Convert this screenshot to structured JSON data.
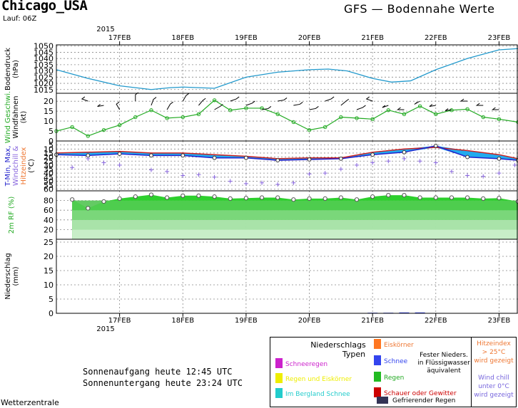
{
  "header": {
    "location": "Chicago_USA",
    "run": "Lauf: 06Z",
    "model_title": "GFS — Bodennahe Werte",
    "year_top": "2015",
    "year_bottom": "2015"
  },
  "footer": {
    "source": "Wetterzentrale",
    "sunrise": "Sonnenaufgang heute 12:45 UTC",
    "sunset": "Sonnenuntergang heute 23:24 UTC"
  },
  "legend": {
    "title": "Niederschlags",
    "subtitle": "Typen",
    "items": [
      {
        "label": "Schneeregen",
        "color": "#cc22cc"
      },
      {
        "label": "Regen und Eiskörner",
        "color": "#eeee00"
      },
      {
        "label": "Im Bergland Schnee",
        "color": "#22cccc"
      },
      {
        "label": "Eiskörner",
        "color": "#ff7722"
      },
      {
        "label": "Schnee",
        "color": "#3344ee"
      },
      {
        "label": "Regen",
        "color": "#22bb22"
      },
      {
        "label": "Schauer oder Gewitter",
        "color": "#cc0000"
      },
      {
        "label": "Gefrierender Regen",
        "color": "#333355"
      }
    ],
    "solid_note": [
      "Fester Nieders.",
      "in Flüssigwasser",
      "äquivalent"
    ],
    "heat_note": [
      "Hitzeindex",
      "> 25°C",
      "wird gezeigt"
    ],
    "chill_note": [
      "Wind chill",
      "unter 0°C",
      "wird gezeigt"
    ]
  },
  "chart_data": {
    "x_start_day": 16.0,
    "x_end_day": 23.3,
    "date_labels": [
      {
        "day": 17,
        "label": "17FEB"
      },
      {
        "day": 18,
        "label": "18FEB"
      },
      {
        "day": 19,
        "label": "19FEB"
      },
      {
        "day": 20,
        "label": "20FEB"
      },
      {
        "day": 21,
        "label": "21FEB"
      },
      {
        "day": 22,
        "label": "22FEB"
      },
      {
        "day": 23,
        "label": "23FEB"
      }
    ],
    "panels": [
      {
        "id": "pressure",
        "type": "line",
        "ylabel": [
          "Bodendruck",
          "(hPa)"
        ],
        "ylim": [
          1012,
          1051
        ],
        "yticks": [
          1015,
          1020,
          1025,
          1030,
          1035,
          1040,
          1045,
          1050
        ],
        "color": "#2299cc",
        "x": [
          16.0,
          16.5,
          17.0,
          17.5,
          17.8,
          18.0,
          18.5,
          19.0,
          19.5,
          20.0,
          20.3,
          20.6,
          21.0,
          21.3,
          21.6,
          22.0,
          22.5,
          23.0,
          23.3
        ],
        "y": [
          1031,
          1024,
          1018,
          1015,
          1016.5,
          1017,
          1016,
          1025,
          1029,
          1031,
          1031.5,
          1030,
          1024,
          1021,
          1022,
          1031,
          1040,
          1047,
          1048
        ]
      },
      {
        "id": "wind",
        "type": "line",
        "ylabel": [
          "Wind Geschwi.",
          "Windfahnen",
          "(kt)"
        ],
        "ylim": [
          0,
          24
        ],
        "yticks": [
          0,
          5,
          10,
          15,
          20
        ],
        "color": "#22aa22",
        "x": [
          16.0,
          16.25,
          16.5,
          16.75,
          17.0,
          17.25,
          17.5,
          17.75,
          18.0,
          18.25,
          18.5,
          18.75,
          19.0,
          19.25,
          19.5,
          19.75,
          20.0,
          20.25,
          20.5,
          20.75,
          21.0,
          21.25,
          21.5,
          21.75,
          22.0,
          22.25,
          22.5,
          22.75,
          23.0,
          23.3
        ],
        "y": [
          5,
          7,
          2.5,
          5.5,
          8,
          12,
          15.5,
          11.5,
          12,
          13.5,
          20.5,
          15.5,
          16.5,
          16.5,
          13.5,
          9.5,
          5.5,
          7,
          12,
          11.5,
          11,
          15.5,
          13.5,
          17.5,
          13.5,
          15.5,
          16,
          12,
          11,
          9.5
        ]
      },
      {
        "id": "temperature",
        "type": "line",
        "ylabel": [
          "T-Min, Max,",
          "Windchill &",
          "Hitzeindex",
          "(°C)"
        ],
        "ylim": [
          -62,
          0
        ],
        "yticks": [
          -5,
          -10,
          -15,
          -20,
          -25,
          -30,
          -35,
          -40,
          -45,
          -50,
          -55,
          -60
        ],
        "color": "#cc2222",
        "max_color": "#cc2222",
        "min_color": "#2222cc",
        "fill_color": "#22aaee",
        "chill_color": "#8866dd",
        "x": [
          16.0,
          16.5,
          17.0,
          17.5,
          18.0,
          18.5,
          19.0,
          19.5,
          20.0,
          20.5,
          21.0,
          21.5,
          22.0,
          22.5,
          23.0,
          23.3
        ],
        "t_max": [
          -15,
          -14,
          -13,
          -15,
          -15,
          -17,
          -19,
          -22,
          -21,
          -21,
          -14,
          -10,
          -8,
          -12,
          -17,
          -22
        ],
        "t_min": [
          -17,
          -18,
          -16,
          -18,
          -18,
          -21,
          -21,
          -24,
          -23,
          -22,
          -17,
          -14,
          -6,
          -20,
          -22,
          -24
        ],
        "windchill_x": [
          16.25,
          16.5,
          16.75,
          17.0,
          17.5,
          17.75,
          18.0,
          18.25,
          18.5,
          18.75,
          19.0,
          19.25,
          19.5,
          19.75,
          20.0,
          20.25,
          20.5,
          20.75,
          21.0,
          21.25,
          21.5,
          21.75,
          22.0,
          22.25,
          22.5,
          22.75,
          23.0,
          23.25
        ],
        "windchill_y": [
          -33,
          -22,
          -27,
          -30,
          -36,
          -38,
          -43,
          -42,
          -45,
          -50,
          -53,
          -52,
          -54,
          -52,
          -41,
          -40,
          -35,
          -30,
          -27,
          -25,
          -22,
          -25,
          -27,
          -38,
          -43,
          -44,
          -40,
          -30
        ]
      },
      {
        "id": "humidity",
        "type": "area",
        "ylabel": [
          "2m RF (%)"
        ],
        "ylim": [
          0,
          100
        ],
        "yticks": [
          20,
          40,
          60,
          80
        ],
        "color": "#22cc22",
        "x": [
          16.25,
          16.5,
          16.75,
          17.0,
          17.25,
          17.5,
          17.75,
          18.0,
          18.25,
          18.5,
          18.75,
          19.0,
          19.25,
          19.5,
          19.75,
          20.0,
          20.25,
          20.5,
          20.75,
          21.0,
          21.25,
          21.5,
          21.75,
          22.0,
          22.25,
          22.5,
          22.75,
          23.0,
          23.3
        ],
        "y": [
          82,
          64,
          78,
          84,
          88,
          92,
          86,
          90,
          90,
          88,
          84,
          85,
          86,
          86,
          82,
          84,
          84,
          86,
          82,
          88,
          91,
          91,
          86,
          86,
          86,
          86,
          84,
          85,
          78
        ]
      },
      {
        "id": "precip",
        "type": "bar",
        "ylabel": [
          "Niederschlag",
          "(mm)"
        ],
        "ylim": [
          0,
          26
        ],
        "yticks": [
          0,
          5,
          10,
          15,
          20,
          25
        ],
        "color": "#3344ee",
        "x": [
          21.0,
          21.25,
          21.5,
          21.75
        ],
        "y": [
          0.2,
          0.2,
          0.3,
          0.3
        ]
      }
    ],
    "wind_barbs_x": [
      16.5,
      16.75,
      17.0,
      17.25,
      17.5,
      17.75,
      18.0,
      18.25,
      18.5,
      18.75,
      19.0,
      19.25,
      19.5,
      19.75,
      20.0,
      20.25,
      20.5,
      20.75,
      21.0,
      21.25,
      21.5,
      21.75,
      22.0,
      22.25,
      22.5,
      22.75,
      23.0
    ],
    "wind_barbs_dir_deg": [
      200,
      170,
      240,
      270,
      290,
      300,
      300,
      310,
      330,
      340,
      340,
      350,
      350,
      350,
      350,
      340,
      320,
      340,
      200,
      160,
      180,
      150,
      170,
      170,
      180,
      180,
      180
    ]
  }
}
